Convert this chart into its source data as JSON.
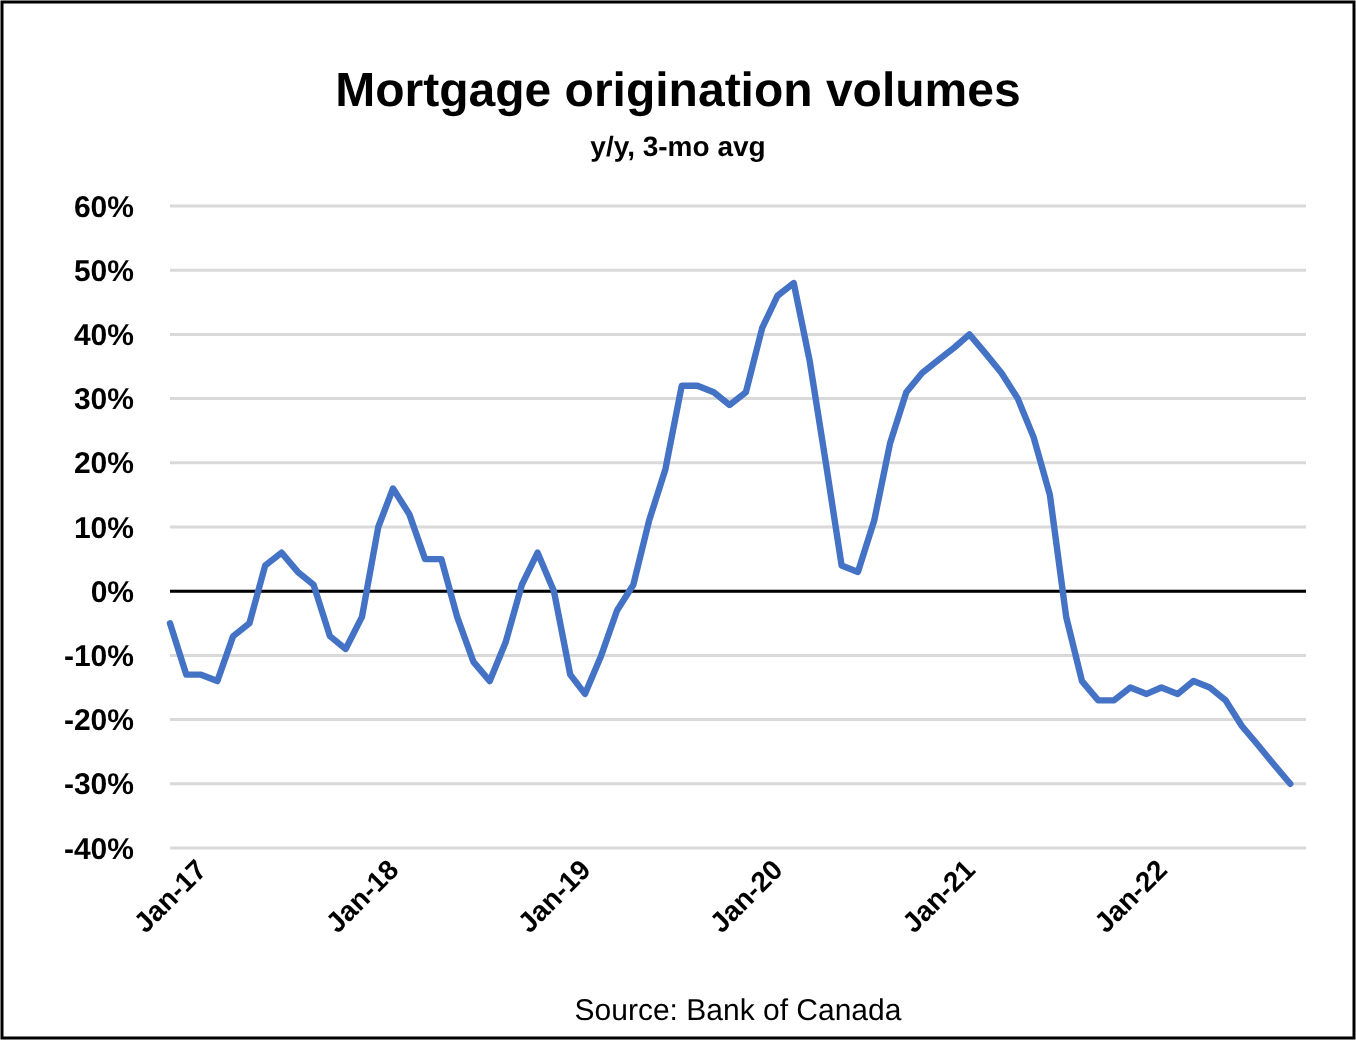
{
  "chart_data": {
    "type": "line",
    "title": "Mortgage origination volumes",
    "subtitle": "y/y, 3-mo avg",
    "annotations": [
      "Source: Bank of Canada"
    ],
    "x": [
      "2017-01",
      "2017-02",
      "2017-03",
      "2017-04",
      "2017-05",
      "2017-06",
      "2017-07",
      "2017-08",
      "2017-09",
      "2017-10",
      "2017-11",
      "2017-12",
      "2018-01",
      "2018-02",
      "2018-03",
      "2018-04",
      "2018-05",
      "2018-06",
      "2018-07",
      "2018-08",
      "2018-09",
      "2018-10",
      "2018-11",
      "2018-12",
      "2019-01",
      "2019-02",
      "2019-03",
      "2019-04",
      "2019-05",
      "2019-06",
      "2019-07",
      "2019-08",
      "2019-09",
      "2019-10",
      "2019-11",
      "2019-12",
      "2020-01",
      "2020-02",
      "2020-03",
      "2020-04",
      "2020-05",
      "2020-06",
      "2020-07",
      "2020-08",
      "2020-09",
      "2020-10",
      "2020-11",
      "2020-12",
      "2021-01",
      "2021-02",
      "2021-03",
      "2021-04",
      "2021-05",
      "2021-06",
      "2021-07",
      "2021-08",
      "2021-09",
      "2021-10",
      "2021-11",
      "2021-12",
      "2022-01",
      "2022-02",
      "2022-03",
      "2022-04",
      "2022-05",
      "2022-06",
      "2022-07",
      "2022-08",
      "2022-09",
      "2022-10",
      "2022-11"
    ],
    "series": [
      {
        "color": "#4472c4",
        "values": [
          -5,
          -13,
          -13,
          -14,
          -7,
          -5,
          4,
          6,
          3,
          1,
          -7,
          -9,
          -4,
          10,
          16,
          12,
          5,
          5,
          -4,
          -11,
          -14,
          -8,
          1,
          6,
          0,
          -13,
          -16,
          -10,
          -3,
          1,
          11,
          19,
          32,
          32,
          31,
          29,
          31,
          41,
          46,
          48,
          36,
          20,
          4,
          3,
          11,
          23,
          31,
          34,
          36,
          38,
          40,
          37,
          34,
          30,
          24,
          15,
          -4,
          -14,
          -17,
          -17,
          -15,
          -16,
          -15,
          -16,
          -14,
          -15,
          -17,
          -21,
          -24,
          -27,
          -30
        ]
      }
    ],
    "xlim": [
      "2017-01",
      "2022-12"
    ],
    "xticks": [
      {
        "value": "2017-01",
        "label": "Jan-17"
      },
      {
        "value": "2018-01",
        "label": "Jan-18"
      },
      {
        "value": "2019-01",
        "label": "Jan-19"
      },
      {
        "value": "2020-01",
        "label": "Jan-20"
      },
      {
        "value": "2021-01",
        "label": "Jan-21"
      },
      {
        "value": "2022-01",
        "label": "Jan-22"
      }
    ],
    "ylim": [
      -40,
      60
    ],
    "yticks": [
      {
        "value": -40,
        "label": "-40%"
      },
      {
        "value": -30,
        "label": "-30%"
      },
      {
        "value": -20,
        "label": "-20%"
      },
      {
        "value": -10,
        "label": "-10%"
      },
      {
        "value": 0,
        "label": "0%"
      },
      {
        "value": 10,
        "label": "10%"
      },
      {
        "value": 20,
        "label": "20%"
      },
      {
        "value": 30,
        "label": "30%"
      },
      {
        "value": 40,
        "label": "40%"
      },
      {
        "value": 50,
        "label": "50%"
      },
      {
        "value": 60,
        "label": "60%"
      }
    ],
    "grid": "y",
    "marker": "none",
    "line_style": "solid"
  }
}
